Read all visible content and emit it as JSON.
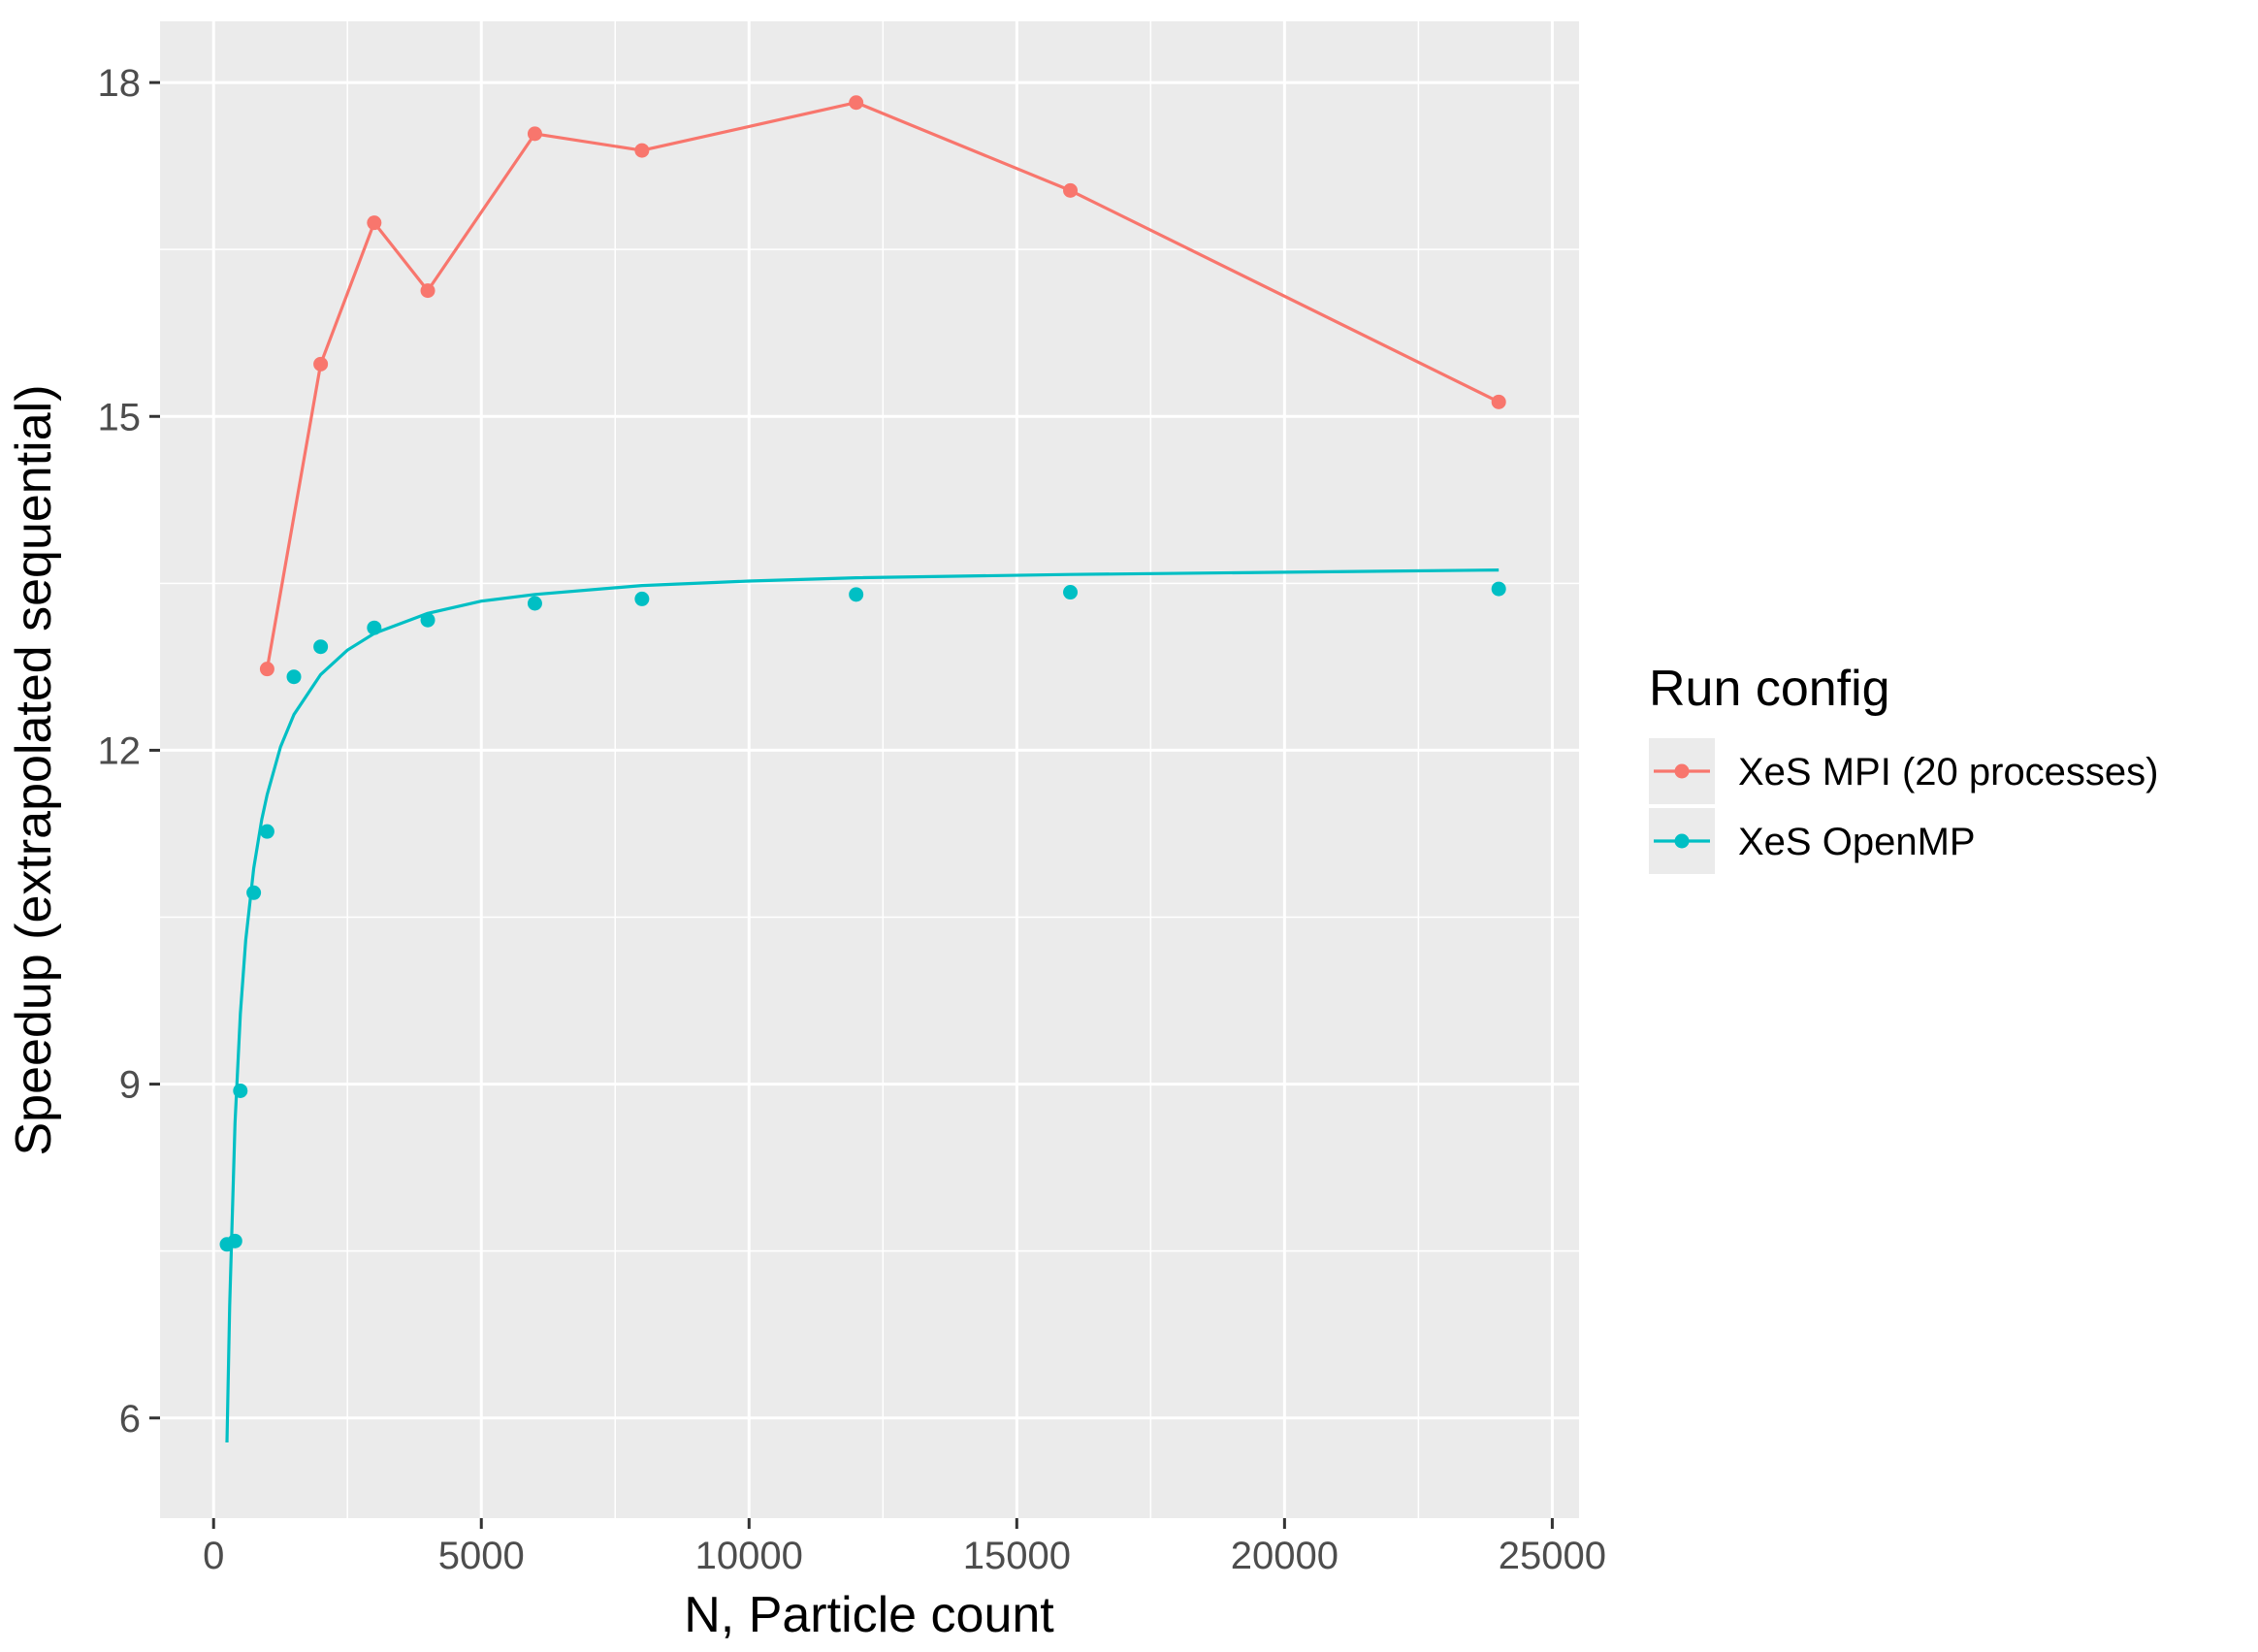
{
  "chart_data": {
    "type": "line",
    "xlabel": "N, Particle count",
    "ylabel": "Speedup (extrapolated sequential)",
    "xlim": [
      -1000,
      25500
    ],
    "ylim": [
      5.1,
      18.55
    ],
    "x_ticks": [
      0,
      5000,
      10000,
      15000,
      20000,
      25000
    ],
    "x_tick_labels": [
      "0",
      "5000",
      "10000",
      "15000",
      "20000",
      "25000"
    ],
    "y_ticks": [
      6,
      9,
      12,
      15,
      18
    ],
    "y_tick_labels": [
      "6",
      "9",
      "12",
      "15",
      "18"
    ],
    "grid": true,
    "legend": {
      "title": "Run config",
      "position": "right"
    },
    "series": [
      {
        "name": "XeS MPI (20 processes)",
        "color": "#F8766D",
        "style": "line+points",
        "x": [
          1000,
          2000,
          3000,
          4000,
          6000,
          8000,
          12000,
          16000,
          24000
        ],
        "y": [
          12.73,
          15.47,
          16.74,
          16.13,
          17.54,
          17.39,
          17.82,
          17.03,
          15.13
        ]
      },
      {
        "name": "XeS OpenMP",
        "color": "#00BFC4",
        "style": "points+fitted-curve",
        "x": [
          250,
          400,
          500,
          750,
          1000,
          1500,
          2000,
          3000,
          4000,
          6000,
          8000,
          12000,
          16000,
          24000
        ],
        "y": [
          7.56,
          7.59,
          8.94,
          10.72,
          11.27,
          12.66,
          12.93,
          13.1,
          13.17,
          13.32,
          13.36,
          13.4,
          13.42,
          13.45
        ],
        "fit": {
          "x": [
            250,
            300,
            400,
            500,
            600,
            750,
            900,
            1000,
            1250,
            1500,
            2000,
            2500,
            3000,
            4000,
            5000,
            6000,
            8000,
            10000,
            12000,
            16000,
            20000,
            24000
          ],
          "y": [
            5.78,
            7.01,
            8.65,
            9.63,
            10.29,
            10.94,
            11.38,
            11.6,
            12.03,
            12.32,
            12.68,
            12.9,
            13.05,
            13.23,
            13.34,
            13.4,
            13.48,
            13.52,
            13.55,
            13.58,
            13.6,
            13.62
          ]
        }
      }
    ]
  }
}
